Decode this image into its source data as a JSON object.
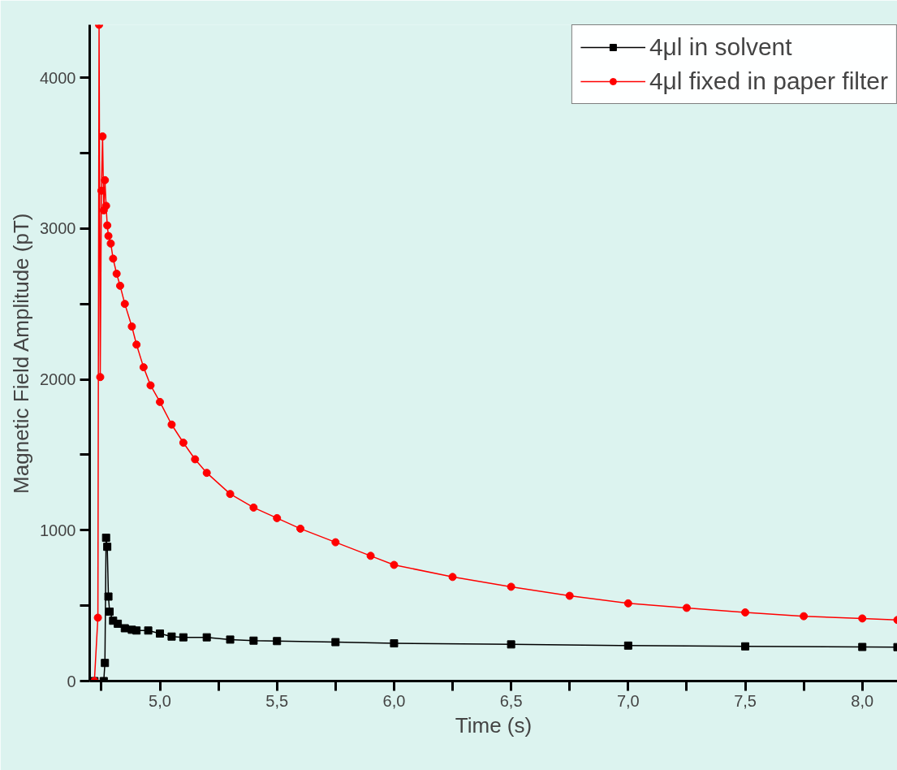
{
  "chart_data": {
    "type": "line",
    "xlabel": "Time (s)",
    "ylabel": "Magnetic Field Amplitude (pT)",
    "xlim": [
      4.7,
      8.15
    ],
    "ylim": [
      0,
      4350
    ],
    "xticks": [
      {
        "value": 4.75,
        "label": null
      },
      {
        "value": 5.0,
        "label": "5,0"
      },
      {
        "value": 5.25,
        "label": null
      },
      {
        "value": 5.5,
        "label": "5,5"
      },
      {
        "value": 5.75,
        "label": null
      },
      {
        "value": 6.0,
        "label": "6,0"
      },
      {
        "value": 6.25,
        "label": null
      },
      {
        "value": 6.5,
        "label": "6,5"
      },
      {
        "value": 6.75,
        "label": null
      },
      {
        "value": 7.0,
        "label": "7,0"
      },
      {
        "value": 7.25,
        "label": null
      },
      {
        "value": 7.5,
        "label": "7,5"
      },
      {
        "value": 7.75,
        "label": null
      },
      {
        "value": 8.0,
        "label": "8,0"
      }
    ],
    "yticks": [
      0,
      {
        "value": 500,
        "label": null
      },
      1000,
      {
        "value": 1500,
        "label": null
      },
      2000,
      {
        "value": 2500,
        "label": null
      },
      3000,
      {
        "value": 3500,
        "label": null
      },
      4000
    ],
    "grid": false,
    "legend": "top right",
    "series": [
      {
        "name": "4μl in solvent",
        "color": "#000000",
        "marker": "square",
        "x": [
          4.72,
          4.76,
          4.765,
          4.77,
          4.775,
          4.78,
          4.785,
          4.8,
          4.82,
          4.85,
          4.88,
          4.9,
          4.95,
          5.0,
          5.05,
          5.1,
          5.2,
          5.3,
          5.4,
          5.5,
          5.75,
          6.0,
          6.5,
          7.0,
          7.5,
          8.0,
          8.15
        ],
        "values": [
          0,
          0,
          120,
          950,
          890,
          560,
          460,
          400,
          380,
          350,
          340,
          335,
          335,
          315,
          295,
          290,
          290,
          275,
          268,
          265,
          258,
          250,
          243,
          235,
          230,
          226,
          225
        ]
      },
      {
        "name": "4μl fixed in paper filter",
        "color": "#ff0000",
        "marker": "circle",
        "x": [
          4.72,
          4.735,
          4.74,
          4.745,
          4.75,
          4.755,
          4.76,
          4.765,
          4.77,
          4.775,
          4.78,
          4.79,
          4.8,
          4.815,
          4.83,
          4.85,
          4.88,
          4.9,
          4.93,
          4.96,
          5.0,
          5.05,
          5.1,
          5.15,
          5.2,
          5.3,
          5.4,
          5.5,
          5.6,
          5.75,
          5.9,
          6.0,
          6.25,
          6.5,
          6.75,
          7.0,
          7.25,
          7.5,
          7.75,
          8.0,
          8.15
        ],
        "values": [
          0,
          420,
          4350,
          2015,
          3250,
          3610,
          3120,
          3320,
          3150,
          3020,
          2950,
          2900,
          2800,
          2700,
          2620,
          2500,
          2350,
          2230,
          2080,
          1960,
          1850,
          1700,
          1580,
          1470,
          1380,
          1240,
          1150,
          1080,
          1010,
          920,
          830,
          770,
          690,
          625,
          565,
          515,
          485,
          455,
          430,
          415,
          405
        ]
      }
    ]
  }
}
